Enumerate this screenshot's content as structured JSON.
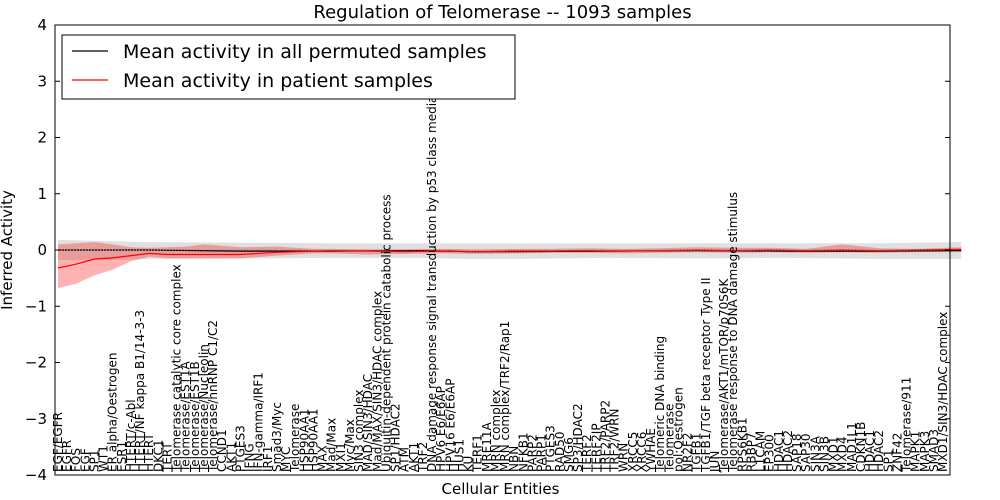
{
  "chart_data": {
    "type": "line",
    "title": "Regulation of Telomerase -- 1093 samples",
    "xlabel": "Cellular Entities",
    "ylabel": "Inferred Activity",
    "ylim": [
      -4,
      4
    ],
    "yticks": [
      "−4",
      "−3",
      "−2",
      "−1",
      "0",
      "1",
      "2",
      "3",
      "4"
    ],
    "legend": {
      "placement": "top-left",
      "entries": [
        {
          "label": "Mean activity in all permuted samples",
          "color": "#000000"
        },
        {
          "label": "Mean activity in patient samples",
          "color": "#ff0000"
        }
      ]
    },
    "categories": [
      "EGF/EGFR",
      "EGFR",
      "FOS",
      "EGF",
      "SP1",
      "WT1",
      "ER alpha/Oestrogen",
      "ESR1",
      "HTERT/c-Abl",
      "HTERT/NF kappa B1/14-3-3",
      "HTERT",
      "DKC1",
      "TERT",
      "Telomerase catalytic core complex",
      "Telomerase/EST1A",
      "Telomerase/EST1B",
      "Telomerase/Nucleolin",
      "Telomerase/hnRNP C1/C2",
      "CCND1",
      "AKT1",
      "PTGES3",
      "IFNG",
      "IFN-gamma/IRF1",
      "IRF1",
      "Smad3/Myc",
      "MYC",
      "Telomerase",
      "HSP90AA1",
      "HSP90AA1",
      "MAX",
      "Mad/Max",
      "MXI1",
      "Myc/Max",
      "SIN3 complex",
      "MAD/SIN3/HDAC",
      "Mad/MAX/SIN3/HDAC complex",
      "Ubiquitin-dependent protein catabolic process",
      "SP1/HDAC2",
      "ATM",
      "AKT1",
      "TRF2",
      "DNA damage response signal transduction by p53 class mediator",
      "HPV6 E6/E6AP",
      "HPV16 E6/E6AP",
      "HUS1",
      "KU",
      "TERF1",
      "MRE11A",
      "MRN complex",
      "MRN complex/TRF2/Rap1",
      "NBN",
      "NFKB1",
      "PARP2",
      "PARP1",
      "PTGES3",
      "RAD50",
      "SMG6",
      "SP3/HDAC2",
      "TERF2",
      "TERF2IP",
      "TRF2/PARP2",
      "TRF2/WRN",
      "WRN",
      "XRCC5",
      "XRCC6",
      "YWHAE",
      "Telomeric DNA binding",
      "Telomerase",
      "pol:Oestrogen",
      "NR2F2",
      "TGFB1",
      "TGFB1/TGF beta receptor Type II",
      "JUN",
      "Telomerase/AKT1/mTOR/p70S6K",
      "Telomerase response to DNA damage stimulus",
      "RPS6KB1",
      "RBBP7",
      "L1CAM",
      "EP300",
      "HDAC1",
      "HDAC2",
      "SAP18",
      "SAP30",
      "SIN3A",
      "SIN3B",
      "MXD1",
      "MXD4",
      "MAD1L1",
      "CDKN1B",
      "HDAC1",
      "HDAC2",
      "SP1",
      "ZNF42",
      "Telomerase/911",
      "MAPK1",
      "MAPK3",
      "SMAD3",
      "MXD1/SIN3/HDAC complex"
    ],
    "series": [
      {
        "name": "Mean activity in all permuted samples",
        "color": "#000000",
        "x": [
          0,
          5,
          10,
          20,
          30,
          40,
          45,
          50,
          60,
          70,
          80,
          90,
          99
        ],
        "mean": [
          0,
          0,
          0,
          -0.02,
          -0.02,
          -0.01,
          -0.03,
          -0.03,
          -0.02,
          -0.01,
          -0.02,
          -0.02,
          -0.01
        ],
        "lower": [
          -0.18,
          -0.18,
          -0.16,
          -0.15,
          -0.14,
          -0.14,
          -0.16,
          -0.16,
          -0.14,
          -0.15,
          -0.14,
          -0.16,
          -0.16
        ],
        "upper": [
          0.18,
          0.16,
          0.14,
          0.13,
          0.12,
          0.12,
          0.12,
          0.12,
          0.12,
          0.12,
          0.12,
          0.12,
          0.14
        ]
      },
      {
        "name": "Mean activity in patient samples",
        "color": "#ff0000",
        "x": [
          0,
          2,
          4,
          6,
          8,
          10,
          12,
          14,
          16,
          20,
          24,
          28,
          30,
          34,
          38,
          42,
          46,
          50,
          54,
          58,
          62,
          66,
          70,
          74,
          78,
          82,
          86,
          90,
          94,
          99
        ],
        "mean": [
          -0.32,
          -0.25,
          -0.16,
          -0.14,
          -0.1,
          -0.06,
          -0.08,
          -0.08,
          -0.08,
          -0.08,
          -0.04,
          -0.02,
          -0.01,
          -0.02,
          -0.03,
          -0.02,
          -0.03,
          -0.02,
          -0.02,
          -0.01,
          -0.02,
          -0.01,
          0.0,
          -0.01,
          0.0,
          -0.01,
          0.0,
          -0.01,
          0.0,
          0.01
        ],
        "lower": [
          -0.68,
          -0.6,
          -0.45,
          -0.35,
          -0.2,
          -0.12,
          -0.15,
          -0.15,
          -0.15,
          -0.15,
          -0.1,
          -0.06,
          -0.06,
          -0.08,
          -0.07,
          -0.06,
          -0.07,
          -0.06,
          -0.05,
          -0.05,
          -0.06,
          -0.05,
          -0.04,
          -0.05,
          -0.04,
          -0.05,
          -0.04,
          -0.05,
          -0.04,
          -0.03
        ],
        "upper": [
          0.1,
          0.12,
          0.14,
          0.1,
          0.05,
          0.04,
          0.05,
          0.06,
          0.1,
          0.05,
          0.06,
          0.02,
          0.02,
          0.01,
          0.01,
          0.02,
          0.01,
          0.02,
          0.02,
          0.03,
          0.02,
          0.03,
          0.05,
          0.04,
          0.04,
          0.02,
          0.1,
          0.03,
          0.02,
          0.05
        ]
      }
    ]
  }
}
